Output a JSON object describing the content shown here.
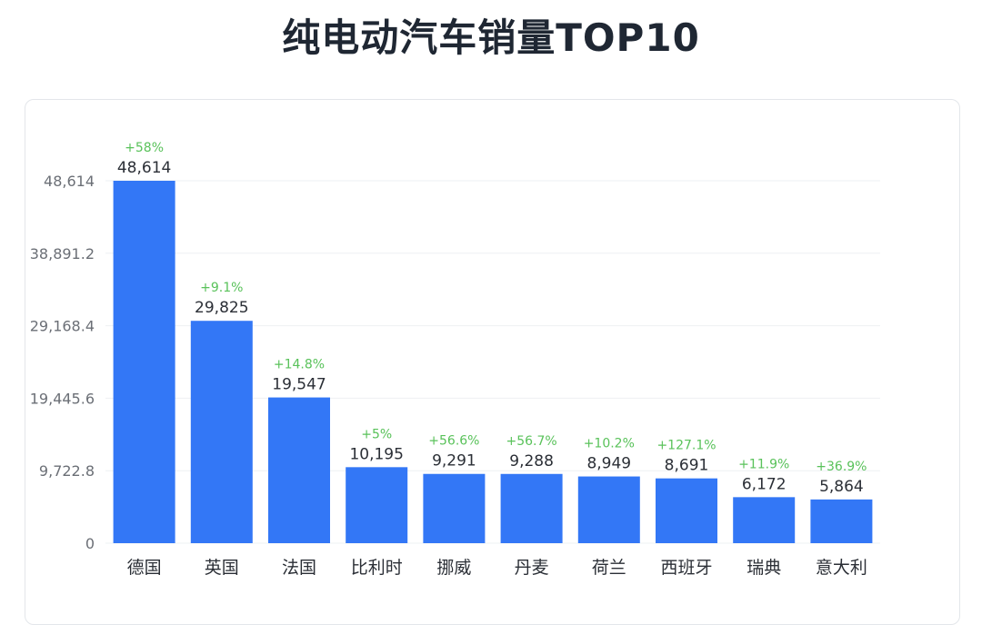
{
  "page": {
    "title": "纯电动汽车销量TOP10"
  },
  "colors": {
    "bar": "#3377f6",
    "growth": "#59c25a",
    "grid": "#eef0f3"
  },
  "chart_data": {
    "type": "bar",
    "title": "纯电动汽车销量TOP10",
    "categories": [
      "德国",
      "英国",
      "法国",
      "比利时",
      "挪威",
      "丹麦",
      "荷兰",
      "西班牙",
      "瑞典",
      "意大利"
    ],
    "values": [
      48614,
      29825,
      19547,
      10195,
      9291,
      9288,
      8949,
      8691,
      6172,
      5864
    ],
    "value_labels": [
      "48,614",
      "29,825",
      "19,547",
      "10,195",
      "9,291",
      "9,288",
      "8,949",
      "8,691",
      "6,172",
      "5,864"
    ],
    "growth_labels": [
      "+58%",
      "+9.1%",
      "+14.8%",
      "+5%",
      "+56.6%",
      "+56.7%",
      "+10.2%",
      "+127.1%",
      "+11.9%",
      "+36.9%"
    ],
    "yticks": [
      0,
      9722.8,
      19445.6,
      29168.4,
      38891.2,
      48614
    ],
    "ytick_labels": [
      "0",
      "9,722.8",
      "19,445.6",
      "29,168.4",
      "38,891.2",
      "48,614"
    ],
    "ylim": [
      0,
      48614
    ],
    "grid": true,
    "legend": "none"
  }
}
